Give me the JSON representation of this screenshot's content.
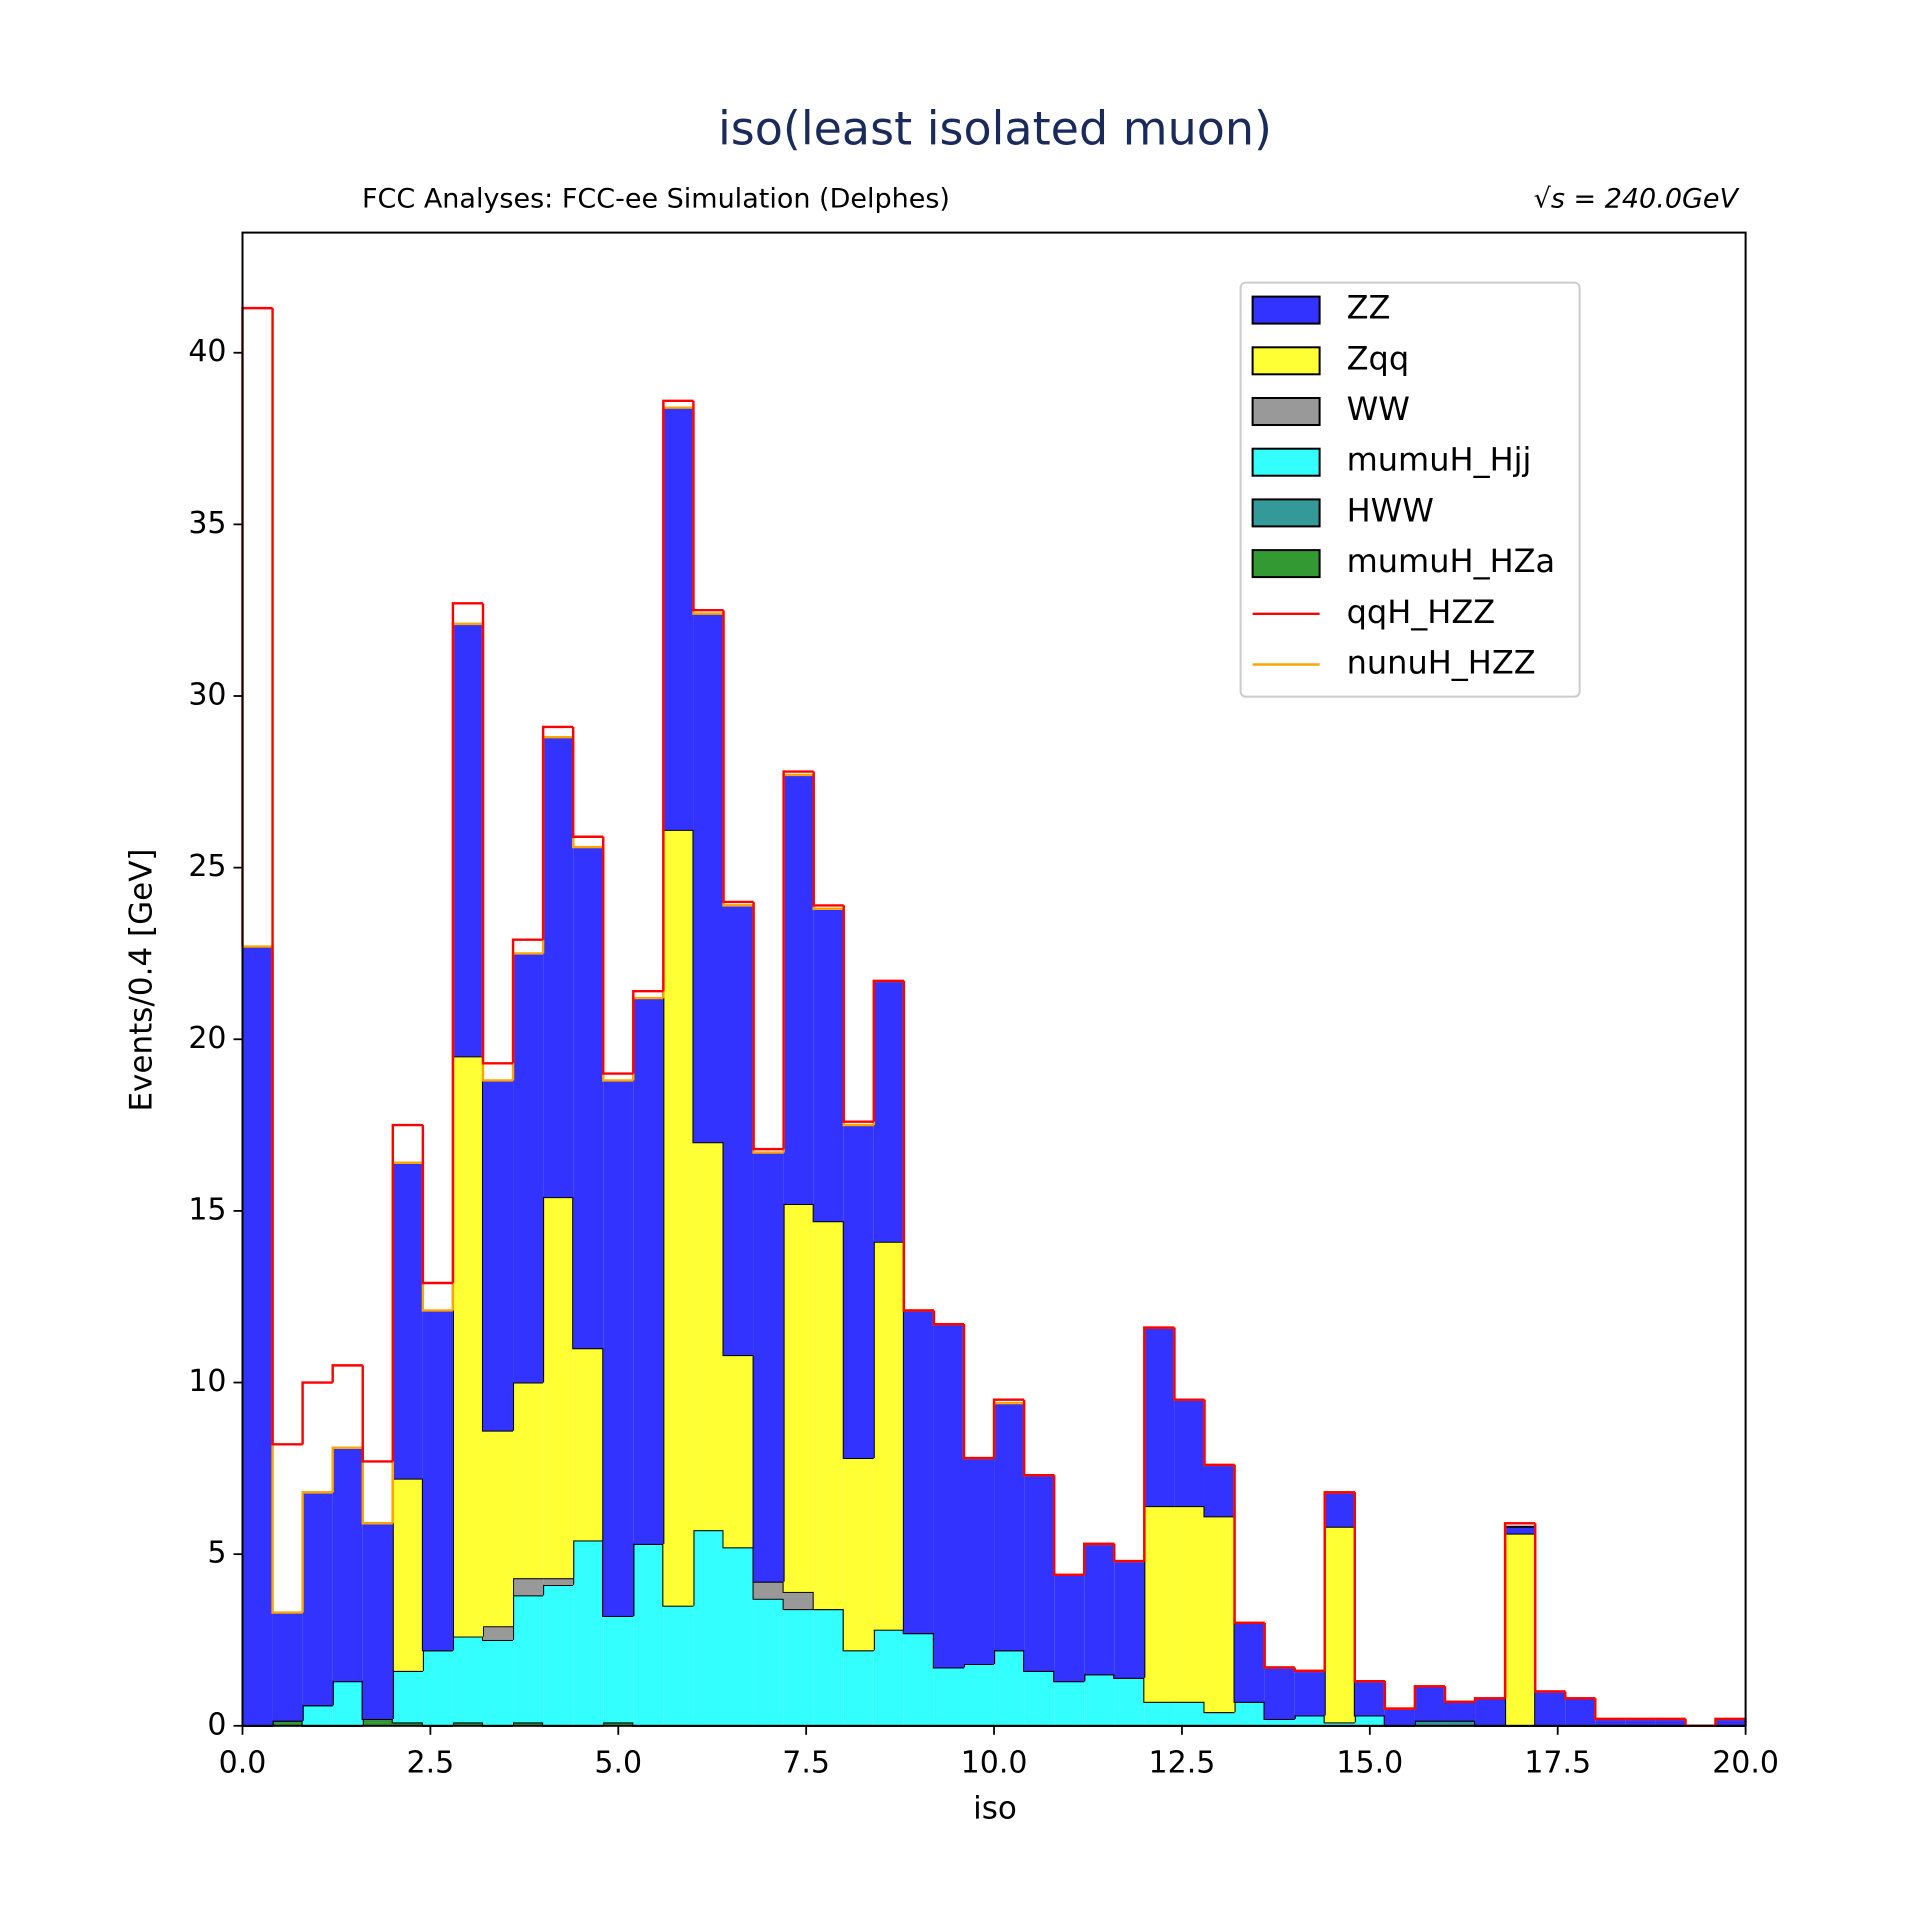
{
  "chart_data": {
    "type": "histogram",
    "title": "iso(least isolated muon)",
    "subtitle_left": "FCC Analyses: FCC-ee Simulation (Delphes)",
    "subtitle_right": "√s = 240.0GeV",
    "x_label": "iso",
    "y_label": "Events/0.4 [GeV]",
    "bins": [
      0,
      0.4,
      0.8,
      1.2,
      1.6,
      2,
      2.4,
      2.8,
      3.2,
      3.6,
      4,
      4.4,
      4.8,
      5.2,
      5.6,
      6,
      6.4,
      6.8,
      7.2,
      7.6,
      8,
      8.4,
      8.8,
      9.2,
      9.6,
      10,
      10.4,
      10.8,
      11.2,
      11.6,
      12,
      12.4,
      12.8,
      13.2,
      13.6,
      14,
      14.4,
      14.8,
      15.2,
      15.6,
      16,
      16.4,
      16.8,
      17.2,
      17.6,
      18,
      18.4,
      18.8,
      19.2,
      19.6,
      20
    ],
    "stacked": true,
    "legend": "upper right",
    "xlim": [
      0,
      20
    ],
    "ylim": [
      0,
      43.5
    ],
    "xticks": [
      {
        "value": 0,
        "label": "0.0"
      },
      2.5,
      {
        "value": 5,
        "label": "5.0"
      },
      7.5,
      {
        "value": 10,
        "label": "10.0"
      },
      12.5,
      {
        "value": 15,
        "label": "15.0"
      },
      17.5,
      {
        "value": 20,
        "label": "20.0"
      }
    ],
    "yticks": [
      0,
      5,
      10,
      15,
      20,
      25,
      30,
      35,
      40
    ],
    "series": [
      {
        "name": "ZZ",
        "color": "#3333ff",
        "style": "filled",
        "values": [
          22.7,
          3.15,
          6.2,
          6.8,
          5.7,
          9.2,
          9.9,
          12.6,
          10.2,
          12.5,
          13.4,
          14.6,
          15.6,
          15.9,
          12.3,
          15.4,
          13.1,
          12.5,
          12.5,
          9.1,
          9.7,
          7.6,
          9.4,
          10.0,
          6.0,
          7.2,
          5.7,
          3.1,
          3.8,
          3.4,
          5.2,
          3.1,
          1.5,
          2.3,
          1.5,
          1.3,
          1.0,
          1.0,
          0.5,
          1.0,
          0.55,
          0.8,
          0.2,
          1.0,
          0.8,
          0.2,
          0.2,
          0.2,
          0,
          0.2
        ]
      },
      {
        "name": "Zqq",
        "color": "#ffff33",
        "style": "filled",
        "values": [
          0,
          0,
          0,
          0,
          0,
          5.6,
          0,
          16.9,
          5.7,
          5.7,
          11.1,
          5.6,
          0,
          0,
          22.6,
          11.3,
          5.6,
          0,
          11.3,
          11.3,
          5.6,
          11.3,
          0,
          0,
          0,
          0,
          0,
          0,
          0,
          0,
          5.7,
          5.7,
          5.7,
          0,
          0,
          0,
          5.7,
          0,
          0,
          0,
          0,
          0,
          5.6,
          0,
          0,
          0,
          0,
          0,
          0,
          0
        ]
      },
      {
        "name": "WW",
        "color": "#999999",
        "style": "filled",
        "values": [
          0,
          0,
          0,
          0,
          0,
          0,
          0,
          0,
          0.4,
          0.5,
          0.2,
          0,
          0,
          0,
          0,
          0,
          0,
          0.5,
          0.5,
          0,
          0,
          0,
          0,
          0,
          0,
          0,
          0,
          0,
          0,
          0,
          0,
          0,
          0,
          0,
          0,
          0,
          0,
          0,
          0,
          0,
          0,
          0,
          0,
          0,
          0,
          0,
          0,
          0,
          0,
          0
        ]
      },
      {
        "name": "mumuH_Hjj",
        "color": "#33ffff",
        "style": "filled",
        "values": [
          0,
          0,
          0.6,
          1.3,
          0,
          1.5,
          2.2,
          2.5,
          2.5,
          3.7,
          4.1,
          5.4,
          3.1,
          5.3,
          3.5,
          5.7,
          5.2,
          3.7,
          3.4,
          3.4,
          2.2,
          2.8,
          2.7,
          1.7,
          1.8,
          2.2,
          1.6,
          1.3,
          1.5,
          1.4,
          0.7,
          0.7,
          0.4,
          0.7,
          0.2,
          0.3,
          0.1,
          0.3,
          0,
          0,
          0,
          0,
          0,
          0,
          0,
          0,
          0,
          0,
          0,
          0
        ]
      },
      {
        "name": "HWW",
        "color": "#339999",
        "style": "filled",
        "values": [
          0,
          0,
          0,
          0,
          0,
          0,
          0,
          0,
          0,
          0,
          0,
          0,
          0,
          0,
          0,
          0,
          0,
          0,
          0,
          0,
          0,
          0,
          0,
          0,
          0,
          0,
          0,
          0,
          0,
          0,
          0,
          0,
          0,
          0,
          0,
          0,
          0,
          0,
          0,
          0.15,
          0.15,
          0,
          0,
          0,
          0,
          0,
          0,
          0,
          0,
          0
        ]
      },
      {
        "name": "mumuH_HZa",
        "color": "#339933",
        "style": "filled",
        "values": [
          0,
          0.15,
          0,
          0,
          0.2,
          0.1,
          0,
          0.1,
          0,
          0.1,
          0,
          0,
          0.1,
          0,
          0,
          0,
          0,
          0,
          0,
          0,
          0,
          0,
          0,
          0,
          0,
          0,
          0,
          0,
          0,
          0,
          0,
          0,
          0,
          0,
          0,
          0,
          0,
          0,
          0,
          0,
          0,
          0,
          0,
          0,
          0,
          0,
          0,
          0,
          0,
          0
        ]
      },
      {
        "name": "qqH_HZZ",
        "color": "#ff0000",
        "style": "step",
        "values": [
          18.6,
          4.9,
          3.2,
          2.4,
          1.8,
          1.1,
          0.8,
          0.6,
          0.5,
          0.4,
          0.3,
          0.3,
          0.2,
          0.2,
          0.2,
          0.1,
          0.1,
          0.1,
          0.1,
          0.1,
          0.1,
          0,
          0,
          0,
          0,
          0.1,
          0,
          0,
          0,
          0,
          0,
          0,
          0,
          0,
          0,
          0,
          0,
          0,
          0,
          0,
          0,
          0,
          0,
          0,
          0,
          0,
          0,
          0,
          0,
          0
        ]
      },
      {
        "name": "nunuH_HZZ",
        "color": "#ffa500",
        "style": "step",
        "values": [
          0,
          0,
          0,
          0,
          0,
          0,
          0,
          0,
          0,
          0,
          0,
          0,
          0,
          0,
          0,
          0,
          0,
          0,
          0,
          0,
          0,
          0,
          0,
          0,
          0,
          0,
          0,
          0,
          0,
          0,
          0,
          0,
          0,
          0,
          0,
          0,
          0,
          0,
          0,
          0,
          0,
          0,
          0.1,
          0,
          0,
          0,
          0,
          0,
          0,
          0
        ]
      }
    ]
  }
}
